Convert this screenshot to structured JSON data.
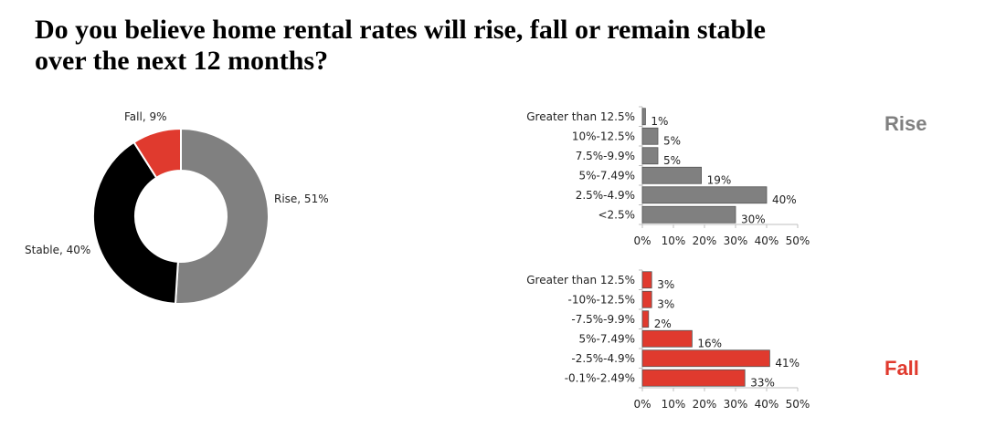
{
  "title": {
    "line1": "Do you believe home rental rates will rise, fall or remain stable",
    "line2": "over the next 12 months?"
  },
  "labels": {
    "rise": "Rise",
    "fall": "Fall"
  },
  "colors": {
    "rise": "#808080",
    "fall": "#e03a2e",
    "stable": "#000000"
  },
  "chart_data": [
    {
      "type": "pie",
      "variant": "donut",
      "slices": [
        {
          "label": "Rise, 51%",
          "value": 51,
          "color": "#808080"
        },
        {
          "label": "Stable, 40%",
          "value": 40,
          "color": "#000000"
        },
        {
          "label": "Fall, 9%",
          "value": 9,
          "color": "#e03a2e"
        }
      ]
    },
    {
      "type": "bar",
      "orientation": "horizontal",
      "categories": [
        "Greater than 12.5%",
        "10%-12.5%",
        "7.5%-9.9%",
        "5%-7.49%",
        "2.5%-4.9%",
        "<2.5%"
      ],
      "values": [
        1,
        5,
        5,
        19,
        40,
        30
      ],
      "data_labels": [
        "1%",
        "5%",
        "5%",
        "19%",
        "40%",
        "30%"
      ],
      "xlim": [
        0,
        50
      ],
      "xticks": [
        "0%",
        "10%",
        "20%",
        "30%",
        "40%",
        "50%"
      ],
      "color": "#808080"
    },
    {
      "type": "bar",
      "orientation": "horizontal",
      "categories": [
        "Greater than 12.5%",
        "-10%-12.5%",
        "-7.5%-9.9%",
        "5%-7.49%",
        "-2.5%-4.9%",
        "-0.1%-2.49%"
      ],
      "values": [
        3,
        3,
        2,
        16,
        41,
        33
      ],
      "data_labels": [
        "3%",
        "3%",
        "2%",
        "16%",
        "41%",
        "33%"
      ],
      "xlim": [
        0,
        50
      ],
      "xticks": [
        "0%",
        "10%",
        "20%",
        "30%",
        "40%",
        "50%"
      ],
      "color": "#e03a2e"
    }
  ]
}
